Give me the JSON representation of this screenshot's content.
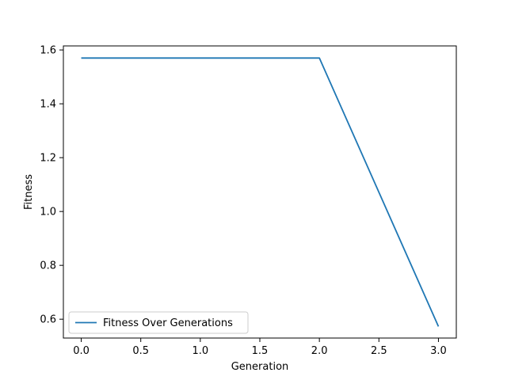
{
  "chart_data": {
    "type": "line",
    "title": "",
    "xlabel": "Generation",
    "ylabel": "Fitness",
    "xlim": [
      -0.15,
      3.15
    ],
    "ylim": [
      0.53,
      1.615
    ],
    "xticks": [
      0.0,
      0.5,
      1.0,
      1.5,
      2.0,
      2.5,
      3.0
    ],
    "xtick_labels": [
      "0.0",
      "0.5",
      "1.0",
      "1.5",
      "2.0",
      "2.5",
      "3.0"
    ],
    "yticks": [
      0.6,
      0.8,
      1.0,
      1.2,
      1.4,
      1.6
    ],
    "ytick_labels": [
      "0.6",
      "0.8",
      "1.0",
      "1.2",
      "1.4",
      "1.6"
    ],
    "grid": false,
    "legend": "lower-left",
    "series": [
      {
        "name": "Fitness Over Generations",
        "color": "#1f77b4",
        "x": [
          0,
          1,
          2,
          3
        ],
        "y": [
          1.57,
          1.57,
          1.57,
          0.573
        ]
      }
    ]
  }
}
